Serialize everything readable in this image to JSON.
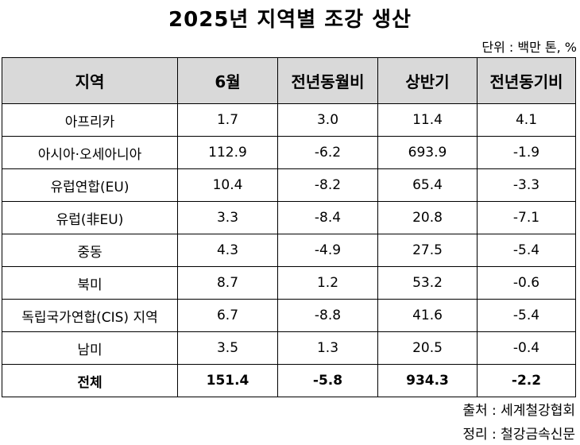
{
  "title": "2025년 지역별 조강 생산",
  "unit": "단위 : 백만 톤, %",
  "table": {
    "headers": [
      "지역",
      "6월",
      "전년동월비",
      "상반기",
      "전년동기비"
    ],
    "rows": [
      [
        "아프리카",
        "1.7",
        "3.0",
        "11.4",
        "4.1"
      ],
      [
        "아시아·오세아니아",
        "112.9",
        "-6.2",
        "693.9",
        "-1.9"
      ],
      [
        "유럽연합(EU)",
        "10.4",
        "-8.2",
        "65.4",
        "-3.3"
      ],
      [
        "유럽(非EU)",
        "3.3",
        "-8.4",
        "20.8",
        "-7.1"
      ],
      [
        "중동",
        "4.3",
        "-4.9",
        "27.5",
        "-5.4"
      ],
      [
        "북미",
        "8.7",
        "1.2",
        "53.2",
        "-0.6"
      ],
      [
        "독립국가연합(CIS) 지역",
        "6.7",
        "-8.8",
        "41.6",
        "-5.4"
      ],
      [
        "남미",
        "3.5",
        "1.3",
        "20.5",
        "-0.4"
      ],
      [
        "전체",
        "151.4",
        "-5.8",
        "934.3",
        "-2.2"
      ]
    ]
  },
  "footer": {
    "source": "출처 : 세계철강협회",
    "editor": "정리 : 철강금속신문"
  }
}
